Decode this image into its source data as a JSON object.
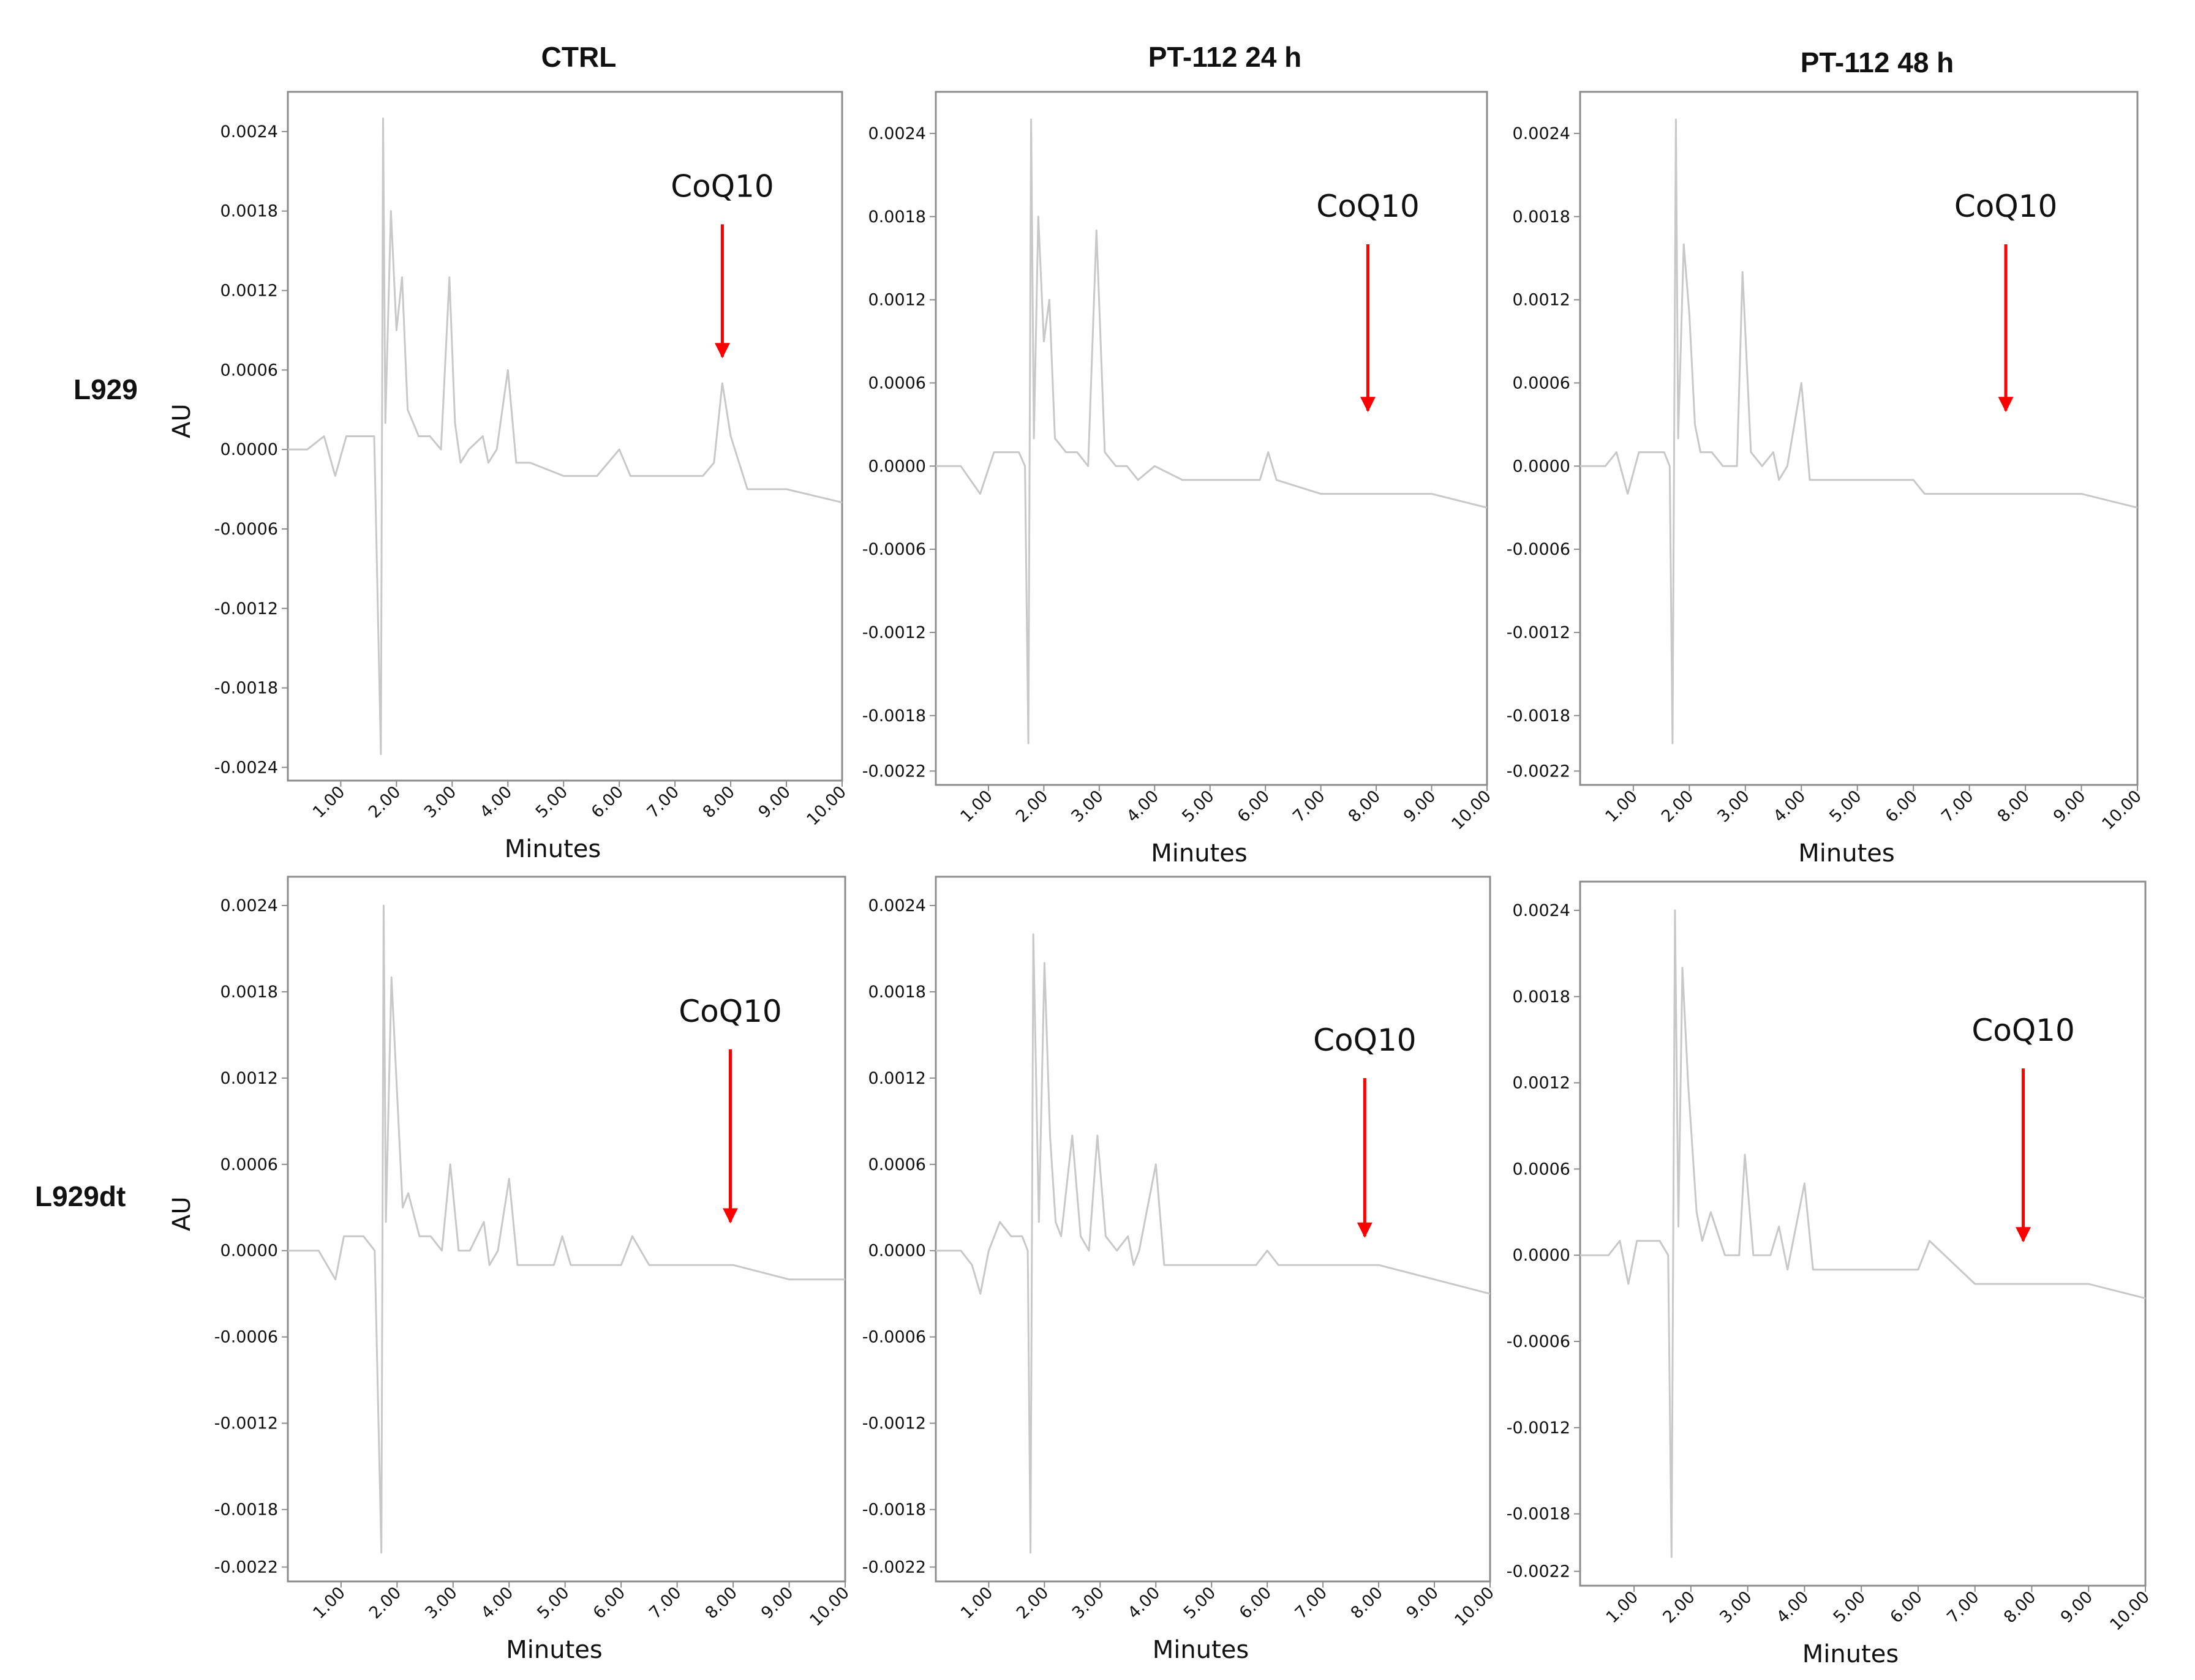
{
  "column_titles": [
    "CTRL",
    "PT-112 24 h",
    "PT-112 48 h"
  ],
  "row_labels": [
    "L929",
    "L929dt"
  ],
  "colors": {
    "trace": "#c8c8c8",
    "arrow": "#ff0000",
    "frame": "#8c8c8c",
    "text": "#111111"
  },
  "chart_data": [
    {
      "type": "line",
      "row": 0,
      "col": 0,
      "xlabel": "Minutes",
      "ylabel": "AU",
      "xlim": [
        0.05,
        10.0
      ],
      "xticks": [
        "1.00",
        "2.00",
        "3.00",
        "4.00",
        "5.00",
        "6.00",
        "7.00",
        "8.00",
        "9.00",
        "10.00"
      ],
      "ylim": [
        -0.0025,
        0.0027
      ],
      "yticks": [
        "0.0024",
        "0.0018",
        "0.0012",
        "0.0006",
        "0.0000",
        "-0.0006",
        "-0.0012",
        "-0.0018",
        "-0.0024"
      ],
      "annotation": {
        "text": "CoQ10",
        "x": 7.85,
        "y_from": 0.0017,
        "y_to": 0.0007
      },
      "series": [
        {
          "x": [
            0.05,
            0.4,
            0.7,
            0.9,
            1.1,
            1.3,
            1.6,
            1.72,
            1.76,
            1.8,
            1.9,
            2.0,
            2.1,
            2.2,
            2.4,
            2.6,
            2.8,
            2.95,
            3.05,
            3.15,
            3.3,
            3.55,
            3.65,
            3.8,
            4.0,
            4.15,
            4.4,
            5.0,
            5.6,
            6.0,
            6.2,
            6.4,
            7.0,
            7.5,
            7.7,
            7.85,
            8.0,
            8.3,
            9.0,
            10.0
          ],
          "y": [
            0.0,
            0.0,
            0.0001,
            -0.0002,
            0.0001,
            0.0001,
            0.0001,
            -0.0023,
            0.0025,
            0.0002,
            0.0018,
            0.0009,
            0.0013,
            0.0003,
            0.0001,
            0.0001,
            0.0,
            0.0013,
            0.0002,
            -0.0001,
            0.0,
            0.0001,
            -0.0001,
            0.0,
            0.0006,
            -0.0001,
            -0.0001,
            -0.0002,
            -0.0002,
            0.0,
            -0.0002,
            -0.0002,
            -0.0002,
            -0.0002,
            -0.0001,
            0.0005,
            0.0001,
            -0.0003,
            -0.0003,
            -0.0004
          ]
        }
      ]
    },
    {
      "type": "line",
      "row": 0,
      "col": 1,
      "xlabel": "Minutes",
      "ylabel": "",
      "xlim": [
        0.05,
        10.0
      ],
      "xticks": [
        "1.00",
        "2.00",
        "3.00",
        "4.00",
        "5.00",
        "6.00",
        "7.00",
        "8.00",
        "9.00",
        "10.00"
      ],
      "ylim": [
        -0.0023,
        0.0027
      ],
      "yticks": [
        "0.0024",
        "0.0018",
        "0.0012",
        "0.0006",
        "0.0000",
        "-0.0006",
        "-0.0012",
        "-0.0018",
        "-0.0022"
      ],
      "annotation": {
        "text": "CoQ10",
        "x": 7.85,
        "y_from": 0.0016,
        "y_to": 0.0004
      },
      "series": [
        {
          "x": [
            0.05,
            0.5,
            0.85,
            1.1,
            1.3,
            1.55,
            1.66,
            1.72,
            1.77,
            1.82,
            1.9,
            2.0,
            2.1,
            2.2,
            2.4,
            2.6,
            2.8,
            2.95,
            3.1,
            3.3,
            3.5,
            3.7,
            4.0,
            4.5,
            5.0,
            5.5,
            5.9,
            6.05,
            6.2,
            7.0,
            8.0,
            9.0,
            10.0
          ],
          "y": [
            0.0,
            0.0,
            -0.0002,
            0.0001,
            0.0001,
            0.0001,
            0.0,
            -0.002,
            0.0025,
            0.0002,
            0.0018,
            0.0009,
            0.0012,
            0.0002,
            0.0001,
            0.0001,
            0.0,
            0.0017,
            0.0001,
            0.0,
            0.0,
            -0.0001,
            0.0,
            -0.0001,
            -0.0001,
            -0.0001,
            -0.0001,
            0.0001,
            -0.0001,
            -0.0002,
            -0.0002,
            -0.0002,
            -0.0003
          ]
        }
      ]
    },
    {
      "type": "line",
      "row": 0,
      "col": 2,
      "xlabel": "Minutes",
      "ylabel": "",
      "xlim": [
        0.05,
        10.0
      ],
      "xticks": [
        "1.00",
        "2.00",
        "3.00",
        "4.00",
        "5.00",
        "6.00",
        "7.00",
        "8.00",
        "9.00",
        "10.00"
      ],
      "ylim": [
        -0.0023,
        0.0027
      ],
      "yticks": [
        "0.0024",
        "0.0018",
        "0.0012",
        "0.0006",
        "0.0000",
        "-0.0006",
        "-0.0012",
        "-0.0018",
        "-0.0022"
      ],
      "annotation": {
        "text": "CoQ10",
        "x": 7.65,
        "y_from": 0.0016,
        "y_to": 0.0004
      },
      "series": [
        {
          "x": [
            0.05,
            0.5,
            0.7,
            0.9,
            1.1,
            1.3,
            1.55,
            1.65,
            1.7,
            1.76,
            1.8,
            1.9,
            2.0,
            2.1,
            2.2,
            2.4,
            2.6,
            2.85,
            2.95,
            3.1,
            3.3,
            3.5,
            3.6,
            3.75,
            4.0,
            4.15,
            4.5,
            5.0,
            5.5,
            6.0,
            6.2,
            7.0,
            8.0,
            9.0,
            10.0
          ],
          "y": [
            0.0,
            0.0,
            0.0001,
            -0.0002,
            0.0001,
            0.0001,
            0.0001,
            0.0,
            -0.002,
            0.0025,
            0.0002,
            0.0016,
            0.0011,
            0.0003,
            0.0001,
            0.0001,
            0.0,
            0.0,
            0.0014,
            0.0001,
            0.0,
            0.0001,
            -0.0001,
            0.0,
            0.0006,
            -0.0001,
            -0.0001,
            -0.0001,
            -0.0001,
            -0.0001,
            -0.0002,
            -0.0002,
            -0.0002,
            -0.0002,
            -0.0003
          ]
        }
      ]
    },
    {
      "type": "line",
      "row": 1,
      "col": 0,
      "xlabel": "Minutes",
      "ylabel": "AU",
      "xlim": [
        0.05,
        10.0
      ],
      "xticks": [
        "1.00",
        "2.00",
        "3.00",
        "4.00",
        "5.00",
        "6.00",
        "7.00",
        "8.00",
        "9.00",
        "10.00"
      ],
      "ylim": [
        -0.0023,
        0.0026
      ],
      "yticks": [
        "0.0024",
        "0.0018",
        "0.0012",
        "0.0006",
        "0.0000",
        "-0.0006",
        "-0.0012",
        "-0.0018",
        "-0.0022"
      ],
      "annotation": {
        "text": "CoQ10",
        "x": 7.95,
        "y_from": 0.0014,
        "y_to": 0.0002
      },
      "series": [
        {
          "x": [
            0.05,
            0.6,
            0.9,
            1.05,
            1.2,
            1.4,
            1.6,
            1.72,
            1.76,
            1.8,
            1.9,
            2.0,
            2.1,
            2.2,
            2.4,
            2.6,
            2.8,
            2.95,
            3.1,
            3.3,
            3.55,
            3.65,
            3.8,
            4.0,
            4.15,
            4.5,
            4.8,
            4.95,
            5.1,
            5.6,
            6.0,
            6.2,
            6.5,
            7.0,
            8.0,
            9.0,
            10.0
          ],
          "y": [
            0.0,
            0.0,
            -0.0002,
            0.0001,
            0.0001,
            0.0001,
            0.0,
            -0.0021,
            0.0024,
            0.0002,
            0.0019,
            0.0011,
            0.0003,
            0.0004,
            0.0001,
            0.0001,
            0.0,
            0.0006,
            0.0,
            0.0,
            0.0002,
            -0.0001,
            0.0,
            0.0005,
            -0.0001,
            -0.0001,
            -0.0001,
            0.0001,
            -0.0001,
            -0.0001,
            -0.0001,
            0.0001,
            -0.0001,
            -0.0001,
            -0.0001,
            -0.0002,
            -0.0002
          ]
        }
      ]
    },
    {
      "type": "line",
      "row": 1,
      "col": 1,
      "xlabel": "Minutes",
      "ylabel": "",
      "xlim": [
        0.05,
        10.0
      ],
      "xticks": [
        "1.00",
        "2.00",
        "3.00",
        "4.00",
        "5.00",
        "6.00",
        "7.00",
        "8.00",
        "9.00",
        "10.00"
      ],
      "ylim": [
        -0.0023,
        0.0026
      ],
      "yticks": [
        "0.0024",
        "0.0018",
        "0.0012",
        "0.0006",
        "0.0000",
        "-0.0006",
        "-0.0012",
        "-0.0018",
        "-0.0022"
      ],
      "annotation": {
        "text": "CoQ10",
        "x": 7.75,
        "y_from": 0.0012,
        "y_to": 0.0001
      },
      "series": [
        {
          "x": [
            0.05,
            0.5,
            0.7,
            0.85,
            1.0,
            1.2,
            1.4,
            1.6,
            1.7,
            1.75,
            1.8,
            1.9,
            2.0,
            2.1,
            2.2,
            2.3,
            2.5,
            2.65,
            2.8,
            2.95,
            3.1,
            3.3,
            3.5,
            3.6,
            3.7,
            4.0,
            4.15,
            4.5,
            5.0,
            5.5,
            5.8,
            6.0,
            6.2,
            7.0,
            8.0,
            9.0,
            10.0
          ],
          "y": [
            0.0,
            0.0,
            -0.0001,
            -0.0003,
            0.0,
            0.0002,
            0.0001,
            0.0001,
            0.0,
            -0.0021,
            0.0022,
            0.0002,
            0.002,
            0.0008,
            0.0002,
            0.0001,
            0.0008,
            0.0001,
            0.0,
            0.0008,
            0.0001,
            0.0,
            0.0001,
            -0.0001,
            0.0,
            0.0006,
            -0.0001,
            -0.0001,
            -0.0001,
            -0.0001,
            -0.0001,
            0.0,
            -0.0001,
            -0.0001,
            -0.0001,
            -0.0002,
            -0.0003
          ]
        }
      ]
    },
    {
      "type": "line",
      "row": 1,
      "col": 2,
      "xlabel": "Minutes",
      "ylabel": "",
      "xlim": [
        0.05,
        10.0
      ],
      "xticks": [
        "1.00",
        "2.00",
        "3.00",
        "4.00",
        "5.00",
        "6.00",
        "7.00",
        "8.00",
        "9.00",
        "10.00"
      ],
      "ylim": [
        -0.0023,
        0.0026
      ],
      "yticks": [
        "0.0024",
        "0.0018",
        "0.0012",
        "0.0006",
        "0.0000",
        "-0.0006",
        "-0.0012",
        "-0.0018",
        "-0.0022"
      ],
      "annotation": {
        "text": "CoQ10",
        "x": 7.85,
        "y_from": 0.0013,
        "y_to": 0.0001
      },
      "series": [
        {
          "x": [
            0.05,
            0.55,
            0.75,
            0.9,
            1.05,
            1.25,
            1.45,
            1.6,
            1.66,
            1.72,
            1.78,
            1.85,
            1.95,
            2.1,
            2.2,
            2.35,
            2.6,
            2.85,
            2.95,
            3.1,
            3.4,
            3.55,
            3.7,
            4.0,
            4.15,
            4.5,
            5.0,
            5.5,
            6.0,
            6.2,
            7.0,
            8.0,
            9.0,
            10.0
          ],
          "y": [
            0.0,
            0.0,
            0.0001,
            -0.0002,
            0.0001,
            0.0001,
            0.0001,
            0.0,
            -0.0021,
            0.0024,
            0.0002,
            0.002,
            0.0012,
            0.0003,
            0.0001,
            0.0003,
            0.0,
            0.0,
            0.0007,
            0.0,
            0.0,
            0.0002,
            -0.0001,
            0.0005,
            -0.0001,
            -0.0001,
            -0.0001,
            -0.0001,
            -0.0001,
            0.0001,
            -0.0002,
            -0.0002,
            -0.0002,
            -0.0003
          ]
        }
      ]
    }
  ]
}
